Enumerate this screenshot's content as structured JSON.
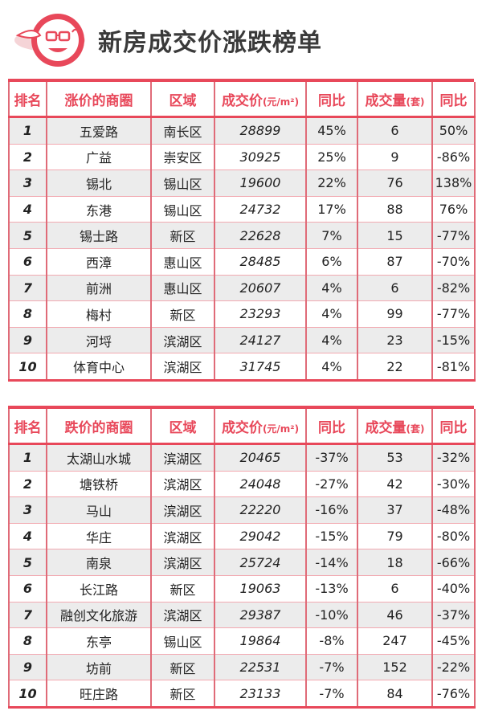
{
  "header": {
    "title": "新房成交价涨跌榜单",
    "logo_icon": "mascot-logo-icon"
  },
  "colors": {
    "accent": "#e8485a",
    "row_alt": "#ececec"
  },
  "rise_table": {
    "headers": [
      "排名",
      "涨价的商圈",
      "区域",
      "成交价",
      "(元/m²)",
      "同比",
      "成交量",
      "(套)",
      "同比"
    ],
    "rows": [
      [
        "1",
        "五爱路",
        "南长区",
        "28899",
        "45%",
        "6",
        "50%"
      ],
      [
        "2",
        "广益",
        "崇安区",
        "30925",
        "25%",
        "9",
        "-86%"
      ],
      [
        "3",
        "锡北",
        "锡山区",
        "19600",
        "22%",
        "76",
        "138%"
      ],
      [
        "4",
        "东港",
        "锡山区",
        "24732",
        "17%",
        "88",
        "76%"
      ],
      [
        "5",
        "锡士路",
        "新区",
        "22628",
        "7%",
        "15",
        "-77%"
      ],
      [
        "6",
        "西漳",
        "惠山区",
        "28485",
        "6%",
        "87",
        "-70%"
      ],
      [
        "7",
        "前洲",
        "惠山区",
        "20607",
        "4%",
        "6",
        "-82%"
      ],
      [
        "8",
        "梅村",
        "新区",
        "23293",
        "4%",
        "99",
        "-77%"
      ],
      [
        "9",
        "河埒",
        "滨湖区",
        "24127",
        "4%",
        "23",
        "-15%"
      ],
      [
        "10",
        "体育中心",
        "滨湖区",
        "31745",
        "4%",
        "22",
        "-81%"
      ]
    ]
  },
  "fall_table": {
    "headers": [
      "排名",
      "跌价的商圈",
      "区域",
      "成交价",
      "(元/m²)",
      "同比",
      "成交量",
      "(套)",
      "同比"
    ],
    "rows": [
      [
        "1",
        "太湖山水城",
        "滨湖区",
        "20465",
        "-37%",
        "53",
        "-32%"
      ],
      [
        "2",
        "塘铁桥",
        "滨湖区",
        "24048",
        "-27%",
        "42",
        "-30%"
      ],
      [
        "3",
        "马山",
        "滨湖区",
        "22220",
        "-16%",
        "37",
        "-48%"
      ],
      [
        "4",
        "华庄",
        "滨湖区",
        "29042",
        "-15%",
        "79",
        "-80%"
      ],
      [
        "5",
        "南泉",
        "滨湖区",
        "25724",
        "-14%",
        "18",
        "-66%"
      ],
      [
        "6",
        "长江路",
        "新区",
        "19063",
        "-13%",
        "6",
        "-40%"
      ],
      [
        "7",
        "融创文化旅游",
        "滨湖区",
        "29387",
        "-10%",
        "46",
        "-37%"
      ],
      [
        "8",
        "东亭",
        "锡山区",
        "19864",
        "-8%",
        "247",
        "-45%"
      ],
      [
        "9",
        "坊前",
        "新区",
        "22531",
        "-7%",
        "152",
        "-22%"
      ],
      [
        "10",
        "旺庄路",
        "新区",
        "23133",
        "-7%",
        "84",
        "-76%"
      ]
    ]
  }
}
